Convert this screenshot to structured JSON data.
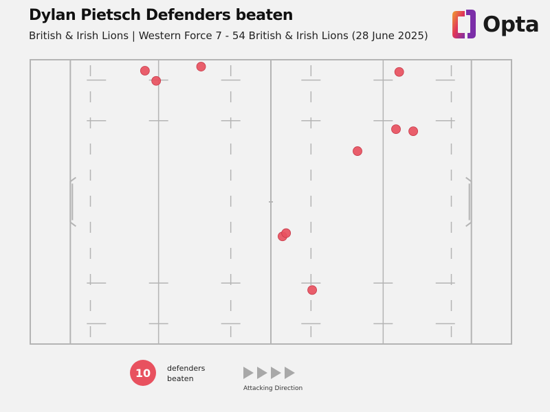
{
  "header": {
    "title": "Dylan Pietsch Defenders beaten",
    "subtitle": "British & Irish Lions | Western Force 7 - 54 British & Irish Lions (28 June 2025)"
  },
  "logo": {
    "text": "Opta",
    "gradient": [
      "#f0a030",
      "#e0355a",
      "#7b2ea8"
    ]
  },
  "legend": {
    "count": "10",
    "label_line1": "defenders",
    "label_line2": "beaten",
    "direction_label": "Attacking Direction"
  },
  "colors": {
    "background": "#f2f2f2",
    "pitch_lines": "#b4b4b4",
    "marker": "#e8515f",
    "marker_edge": "#c63848",
    "arrow": "#a8a8a8"
  },
  "chart_data": {
    "type": "scatter",
    "description_units": "pitch metres from left dead-ball line (x) and from top touchline (y)",
    "xlim": [
      0,
      120
    ],
    "ylim": [
      0,
      70
    ],
    "points": [
      {
        "x": 28.6,
        "y": 2.7
      },
      {
        "x": 31.4,
        "y": 5.2
      },
      {
        "x": 42.6,
        "y": 1.7
      },
      {
        "x": 92.0,
        "y": 3.0
      },
      {
        "x": 91.2,
        "y": 17.1
      },
      {
        "x": 95.5,
        "y": 17.6
      },
      {
        "x": 81.6,
        "y": 22.5
      },
      {
        "x": 62.9,
        "y": 43.5
      },
      {
        "x": 63.8,
        "y": 42.7
      },
      {
        "x": 70.3,
        "y": 56.7
      }
    ]
  }
}
